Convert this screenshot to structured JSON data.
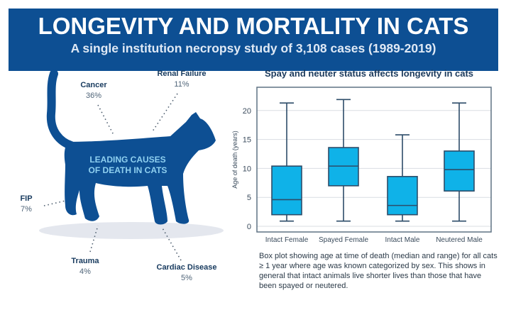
{
  "header": {
    "title": "LONGEVITY AND MORTALITY IN CATS",
    "subtitle": "A single institution necropsy study of 3,108 cases (1989-2019)"
  },
  "causes": {
    "center_line1": "LEADING CAUSES",
    "center_line2": "OF DEATH IN CATS",
    "items": [
      {
        "label": "Cancer",
        "pct": "36%"
      },
      {
        "label": "Renal Failure",
        "pct": "11%"
      },
      {
        "label": "FIP",
        "pct": "7%"
      },
      {
        "label": "Trauma",
        "pct": "4%"
      },
      {
        "label": "Cardiac Disease",
        "pct": "5%"
      }
    ]
  },
  "colors": {
    "brand": "#0d4f93",
    "box_fill": "#0fb2e8",
    "box_stroke": "#2d4c69"
  },
  "chart_data": {
    "type": "box",
    "title": "Spay and neuter status affects longevity in cats",
    "ylabel": "Age of death (years)",
    "ylim": [
      0,
      23
    ],
    "yticks": [
      0,
      5,
      10,
      15,
      20
    ],
    "grid": true,
    "categories": [
      "Intact Female",
      "Spayed Female",
      "Intact Male",
      "Neutered Male"
    ],
    "boxes": [
      {
        "min": 0.9,
        "q1": 2.0,
        "median": 4.6,
        "q3": 10.4,
        "max": 21.3
      },
      {
        "min": 0.9,
        "q1": 7.0,
        "median": 10.4,
        "q3": 13.6,
        "max": 21.9
      },
      {
        "min": 0.9,
        "q1": 2.0,
        "median": 3.6,
        "q3": 8.6,
        "max": 15.8
      },
      {
        "min": 0.9,
        "q1": 6.1,
        "median": 9.8,
        "q3": 13.0,
        "max": 21.3
      }
    ]
  },
  "caption": "Box plot showing age at time of death (median and range) for all cats ≥ 1 year where age was known categorized by sex. This shows in general that intact animals live shorter lives than those that have been spayed or neutered."
}
